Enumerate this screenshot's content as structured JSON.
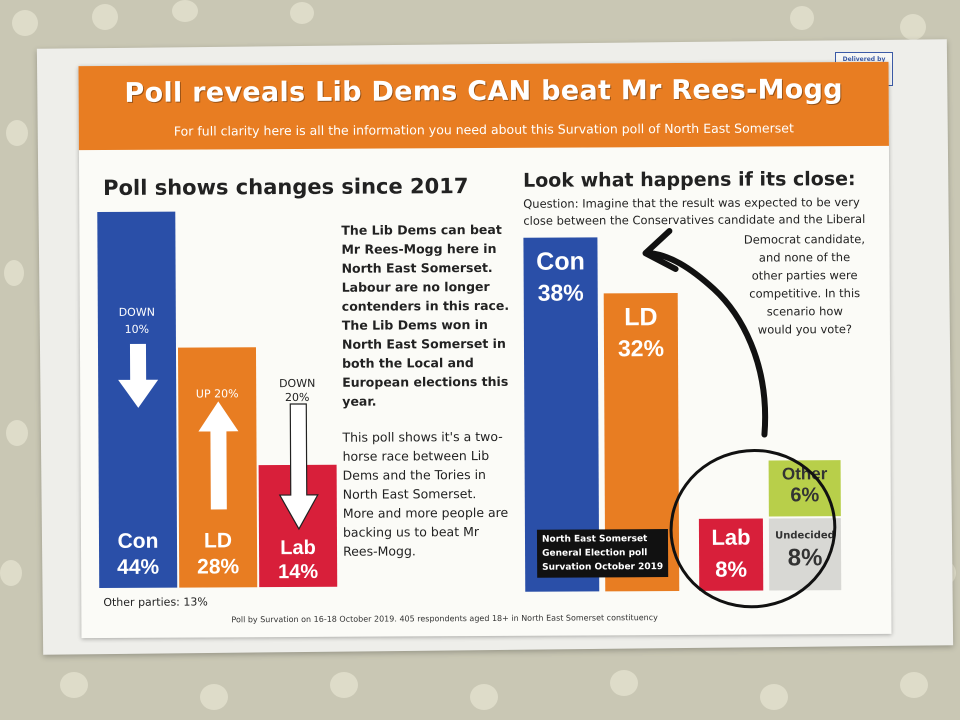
{
  "envelope": {
    "stamp_text": "Delivered by"
  },
  "header": {
    "headline": "Poll reveals Lib Dems CAN beat Mr Rees-Mogg",
    "subheadline": "For full clarity here is all the information you need about this Survation poll of North East Somerset"
  },
  "left_chart": {
    "title": "Poll shows changes since 2017",
    "bars": [
      {
        "party": "Con",
        "value": "44%",
        "change_dir": "DOWN",
        "change_pct": "10%",
        "color": "#2a4fa8"
      },
      {
        "party": "LD",
        "value": "28%",
        "change_dir": "UP",
        "change_pct": "20%",
        "color": "#e87d22"
      },
      {
        "party": "Lab",
        "value": "14%",
        "change_dir": "DOWN",
        "change_pct": "20%",
        "color": "#d81f3a"
      }
    ],
    "other_parties": "Other parties: 13%"
  },
  "middle_text": {
    "bold_paragraph": [
      "The Lib Dems can beat",
      "Mr Rees-Mogg here in",
      "North East Somerset.",
      "Labour are no longer",
      "contenders in this race.",
      "The Lib Dems won in",
      "North East Somerset in",
      "both the Local and",
      "European elections this",
      "year."
    ],
    "paragraph": [
      "This poll shows it's a two-",
      "horse race between Lib",
      "Dems and the Tories in",
      "North East Somerset.",
      "More and more people are",
      "backing us to beat Mr",
      "Rees-Mogg."
    ]
  },
  "right_chart": {
    "title": "Look what happens if its close:",
    "question_lines": [
      "Question: Imagine that the result was expected to be very",
      "close between the Conservatives candidate and the Liberal"
    ],
    "question_continued": [
      "Democrat candidate,",
      "and none of the",
      "other parties were",
      "competitive. In this",
      "scenario how",
      "would you vote?"
    ],
    "bars": [
      {
        "party": "Con",
        "value": "38%",
        "color": "#2a4fa8"
      },
      {
        "party": "LD",
        "value": "32%",
        "color": "#e87d22"
      },
      {
        "party": "Lab",
        "value": "8%",
        "color": "#d81f3a"
      },
      {
        "party": "Other",
        "value": "6%",
        "color": "#b8cf4a"
      },
      {
        "party": "Undecided",
        "value": "8%",
        "color": "#d8d8d4"
      }
    ],
    "caption": [
      "North East Somerset",
      "General Election poll",
      "Survation October 2019"
    ]
  },
  "footer": {
    "note": "Poll by Survation on 16-18 October 2019. 405 respondents aged 18+ in North East Somerset constituency"
  }
}
